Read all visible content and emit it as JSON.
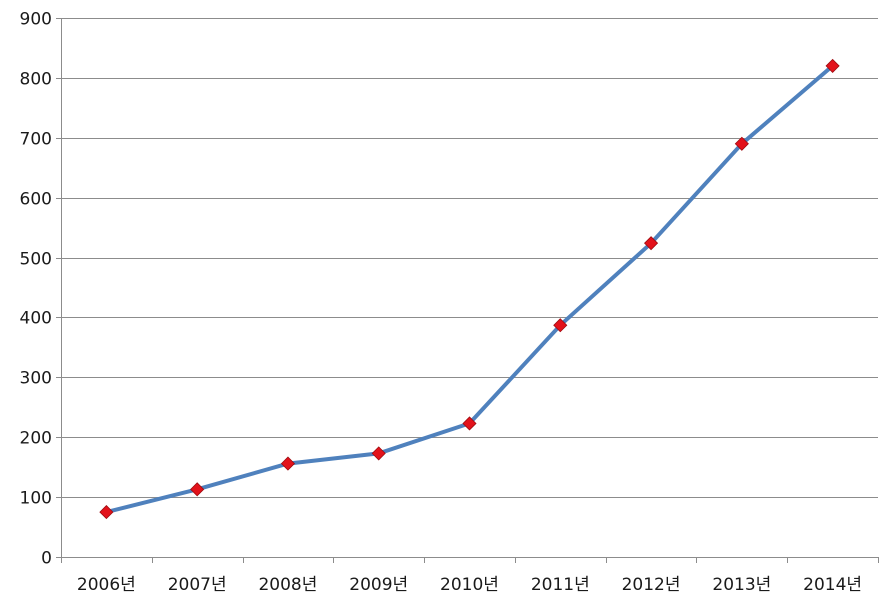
{
  "chart_data": {
    "type": "line",
    "title": "",
    "xlabel": "",
    "ylabel": "",
    "categories": [
      "2006년",
      "2007년",
      "2008년",
      "2009년",
      "2010년",
      "2011년",
      "2012년",
      "2013년",
      "2014년"
    ],
    "series": [
      {
        "values": [
          75,
          113,
          156,
          173,
          223,
          387,
          524,
          690,
          820
        ]
      }
    ],
    "ylim": [
      0,
      900
    ],
    "yticks": [
      0,
      100,
      200,
      300,
      400,
      500,
      600,
      700,
      800,
      900
    ],
    "grid": true,
    "legend": "none",
    "colors": {
      "line": "#4f81bd",
      "marker_fill": "#e3121b",
      "marker_stroke": "#9e0b10",
      "grid": "#8c8c8c",
      "text": "#1a1a1a"
    }
  }
}
